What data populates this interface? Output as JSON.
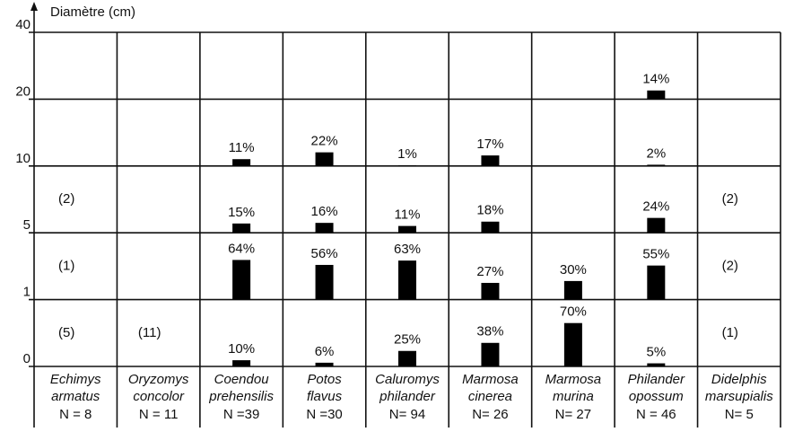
{
  "chart_data": {
    "type": "cell-bar",
    "y_label": "Diamètre (cm)",
    "yticks": [
      0,
      1,
      5,
      10,
      20,
      40
    ],
    "color": "#000000",
    "columns": [
      {
        "genus": "Echimys",
        "species": "armatus",
        "n_label": "N = 8",
        "n": 8,
        "values": [
          null,
          null,
          null,
          null,
          null
        ],
        "value_labels": [
          null,
          null,
          null,
          null,
          null
        ],
        "counts": [
          5,
          1,
          2,
          null,
          null
        ],
        "count_labels": [
          "(5)",
          "(1)",
          "(2)",
          null,
          null
        ]
      },
      {
        "genus": "Oryzomys",
        "species": "concolor",
        "n_label": "N = 11",
        "n": 11,
        "values": [
          null,
          null,
          null,
          null,
          null
        ],
        "value_labels": [
          null,
          null,
          null,
          null,
          null
        ],
        "counts": [
          11,
          null,
          null,
          null,
          null
        ],
        "count_labels": [
          "(11)",
          null,
          null,
          null,
          null
        ]
      },
      {
        "genus": "Coendou",
        "species": "prehensilis",
        "n_label": "N =39",
        "n": 39,
        "values": [
          10,
          64,
          15,
          11,
          null
        ],
        "value_labels": [
          "10%",
          "64%",
          "15%",
          "11%",
          null
        ],
        "counts": [
          null,
          null,
          null,
          null,
          null
        ],
        "count_labels": [
          null,
          null,
          null,
          null,
          null
        ]
      },
      {
        "genus": "Potos",
        "species": "flavus",
        "n_label": "N =30",
        "n": 30,
        "values": [
          6,
          56,
          16,
          22,
          null
        ],
        "value_labels": [
          "6%",
          "56%",
          "16%",
          "22%",
          null
        ],
        "counts": [
          null,
          null,
          null,
          null,
          null
        ],
        "count_labels": [
          null,
          null,
          null,
          null,
          null
        ]
      },
      {
        "genus": "Caluromys",
        "species": "philander",
        "n_label": "N= 94",
        "n": 94,
        "values": [
          25,
          63,
          11,
          1,
          null
        ],
        "value_labels": [
          "25%",
          "63%",
          "11%",
          "1%",
          null
        ],
        "counts": [
          null,
          null,
          null,
          null,
          null
        ],
        "count_labels": [
          null,
          null,
          null,
          null,
          null
        ]
      },
      {
        "genus": "Marmosa",
        "species": "cinerea",
        "n_label": "N= 26",
        "n": 26,
        "values": [
          38,
          27,
          18,
          17,
          null
        ],
        "value_labels": [
          "38%",
          "27%",
          "18%",
          "17%",
          null
        ],
        "counts": [
          null,
          null,
          null,
          null,
          null
        ],
        "count_labels": [
          null,
          null,
          null,
          null,
          null
        ]
      },
      {
        "genus": "Marmosa",
        "species": "murina",
        "n_label": "N= 27",
        "n": 27,
        "values": [
          70,
          30,
          null,
          null,
          null
        ],
        "value_labels": [
          "70%",
          "30%",
          null,
          null,
          null
        ],
        "counts": [
          null,
          null,
          null,
          null,
          null
        ],
        "count_labels": [
          null,
          null,
          null,
          null,
          null
        ]
      },
      {
        "genus": "Philander",
        "species": "opossum",
        "n_label": "N = 46",
        "n": 46,
        "values": [
          5,
          55,
          24,
          2,
          14
        ],
        "value_labels": [
          "5%",
          "55%",
          "24%",
          "2%",
          "14%"
        ],
        "counts": [
          null,
          null,
          null,
          null,
          null
        ],
        "count_labels": [
          null,
          null,
          null,
          null,
          null
        ]
      },
      {
        "genus": "Didelphis",
        "species": "marsupialis",
        "n_label": "N= 5",
        "n": 5,
        "values": [
          null,
          null,
          null,
          null,
          null
        ],
        "value_labels": [
          null,
          null,
          null,
          null,
          null
        ],
        "counts": [
          1,
          2,
          2,
          null,
          null
        ],
        "count_labels": [
          "(1)",
          "(2)",
          "(2)",
          null,
          null
        ]
      }
    ]
  }
}
